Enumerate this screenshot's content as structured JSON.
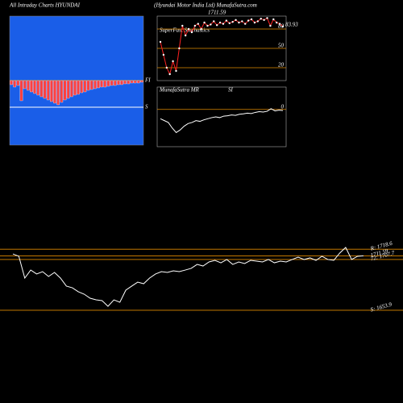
{
  "header": {
    "left": "All Intraday Charts HYUNDAI",
    "center": "(Hyundai Motor India Ltd) MunafaSutra.com"
  },
  "chart_data": [
    {
      "type": "bar",
      "color": "#ff4040",
      "background": "#1a5ee8",
      "ylim": [
        -80,
        80
      ],
      "values": [
        -5,
        -8,
        -6,
        -25,
        -10,
        -12,
        -14,
        -16,
        -18,
        -20,
        -22,
        -24,
        -26,
        -28,
        -30,
        -27,
        -24,
        -22,
        -20,
        -18,
        -17,
        -15,
        -14,
        -12,
        -11,
        -10,
        -9,
        -8,
        -8,
        -7,
        -6,
        -6,
        -5,
        -5,
        -4,
        -4,
        -3,
        -3,
        -3,
        -2
      ],
      "levels": [
        {
          "value": 0,
          "label": "FI"
        },
        {
          "value": -33,
          "label": "S"
        }
      ]
    },
    {
      "type": "line",
      "title": "SuperFast Stochastics",
      "subtitle": "1711.59",
      "color": "#ff2020",
      "grid_color": "#e08a00",
      "ylim": [
        0,
        100
      ],
      "yticks": [
        80,
        50,
        20
      ],
      "values": [
        60,
        40,
        20,
        10,
        30,
        15,
        50,
        85,
        70,
        80,
        75,
        85,
        88,
        80,
        90,
        85,
        87,
        92,
        86,
        90,
        88,
        93,
        89,
        91,
        94,
        90,
        92,
        88,
        93,
        95,
        90,
        92,
        96,
        94,
        97,
        85,
        95,
        90,
        88,
        83.93
      ],
      "value_labels": [
        null,
        null,
        null,
        null,
        null,
        null,
        null,
        null,
        null,
        null,
        null,
        null,
        null,
        null,
        null,
        null,
        null,
        null,
        null,
        null,
        null,
        null,
        null,
        null,
        null,
        null,
        null,
        null,
        null,
        null,
        null,
        null,
        null,
        null,
        null,
        null,
        null,
        null,
        null,
        "83.93"
      ]
    },
    {
      "type": "line",
      "title_parts": [
        "MunafaSutra MR",
        "SI"
      ],
      "color": "#ffffff",
      "grid_color": "#e08a00",
      "ylim": [
        -1,
        0.6
      ],
      "yticks": [
        0
      ],
      "values": [
        -0.25,
        -0.3,
        -0.35,
        -0.5,
        -0.62,
        -0.55,
        -0.45,
        -0.38,
        -0.35,
        -0.3,
        -0.32,
        -0.28,
        -0.25,
        -0.22,
        -0.2,
        -0.22,
        -0.18,
        -0.17,
        -0.15,
        -0.16,
        -0.13,
        -0.12,
        -0.1,
        -0.11,
        -0.08,
        -0.06,
        -0.07,
        -0.05,
        0.02,
        -0.04,
        -0.02,
        -0.03
      ]
    },
    {
      "type": "line",
      "color": "#ffffff",
      "grid_color": "#e08a00",
      "ylim": [
        1641,
        1735
      ],
      "values": [
        1713.6,
        1711.1,
        1688.0,
        1696.5,
        1692.3,
        1694.8,
        1689.7,
        1694.0,
        1688.0,
        1679.5,
        1677.7,
        1673.5,
        1670.9,
        1666.6,
        1664.9,
        1664.1,
        1658.1,
        1664.9,
        1662.4,
        1675.2,
        1679.5,
        1683.7,
        1682.0,
        1688.0,
        1692.3,
        1694.8,
        1694.0,
        1695.7,
        1694.8,
        1696.5,
        1698.3,
        1702.5,
        1700.8,
        1705.1,
        1706.8,
        1704.2,
        1707.7,
        1702.5,
        1705.1,
        1703.4,
        1706.8,
        1705.9,
        1705.1,
        1707.7,
        1704.2,
        1705.9,
        1705.1,
        1707.7,
        1710.2,
        1707.7,
        1709.4,
        1706.8,
        1711.1,
        1707.7,
        1706.8,
        1714.5,
        1720.5,
        1707.7,
        1711.1,
        1711.59
      ],
      "levels": [
        {
          "value": 1718.6,
          "label": "R: 1718.6"
        },
        {
          "value": 1711.59,
          "label": "1711.59"
        },
        {
          "value": 1707.7,
          "label": "72: 1707.7"
        },
        {
          "value": 1653.9,
          "label": "S: 1653.9"
        }
      ]
    }
  ]
}
